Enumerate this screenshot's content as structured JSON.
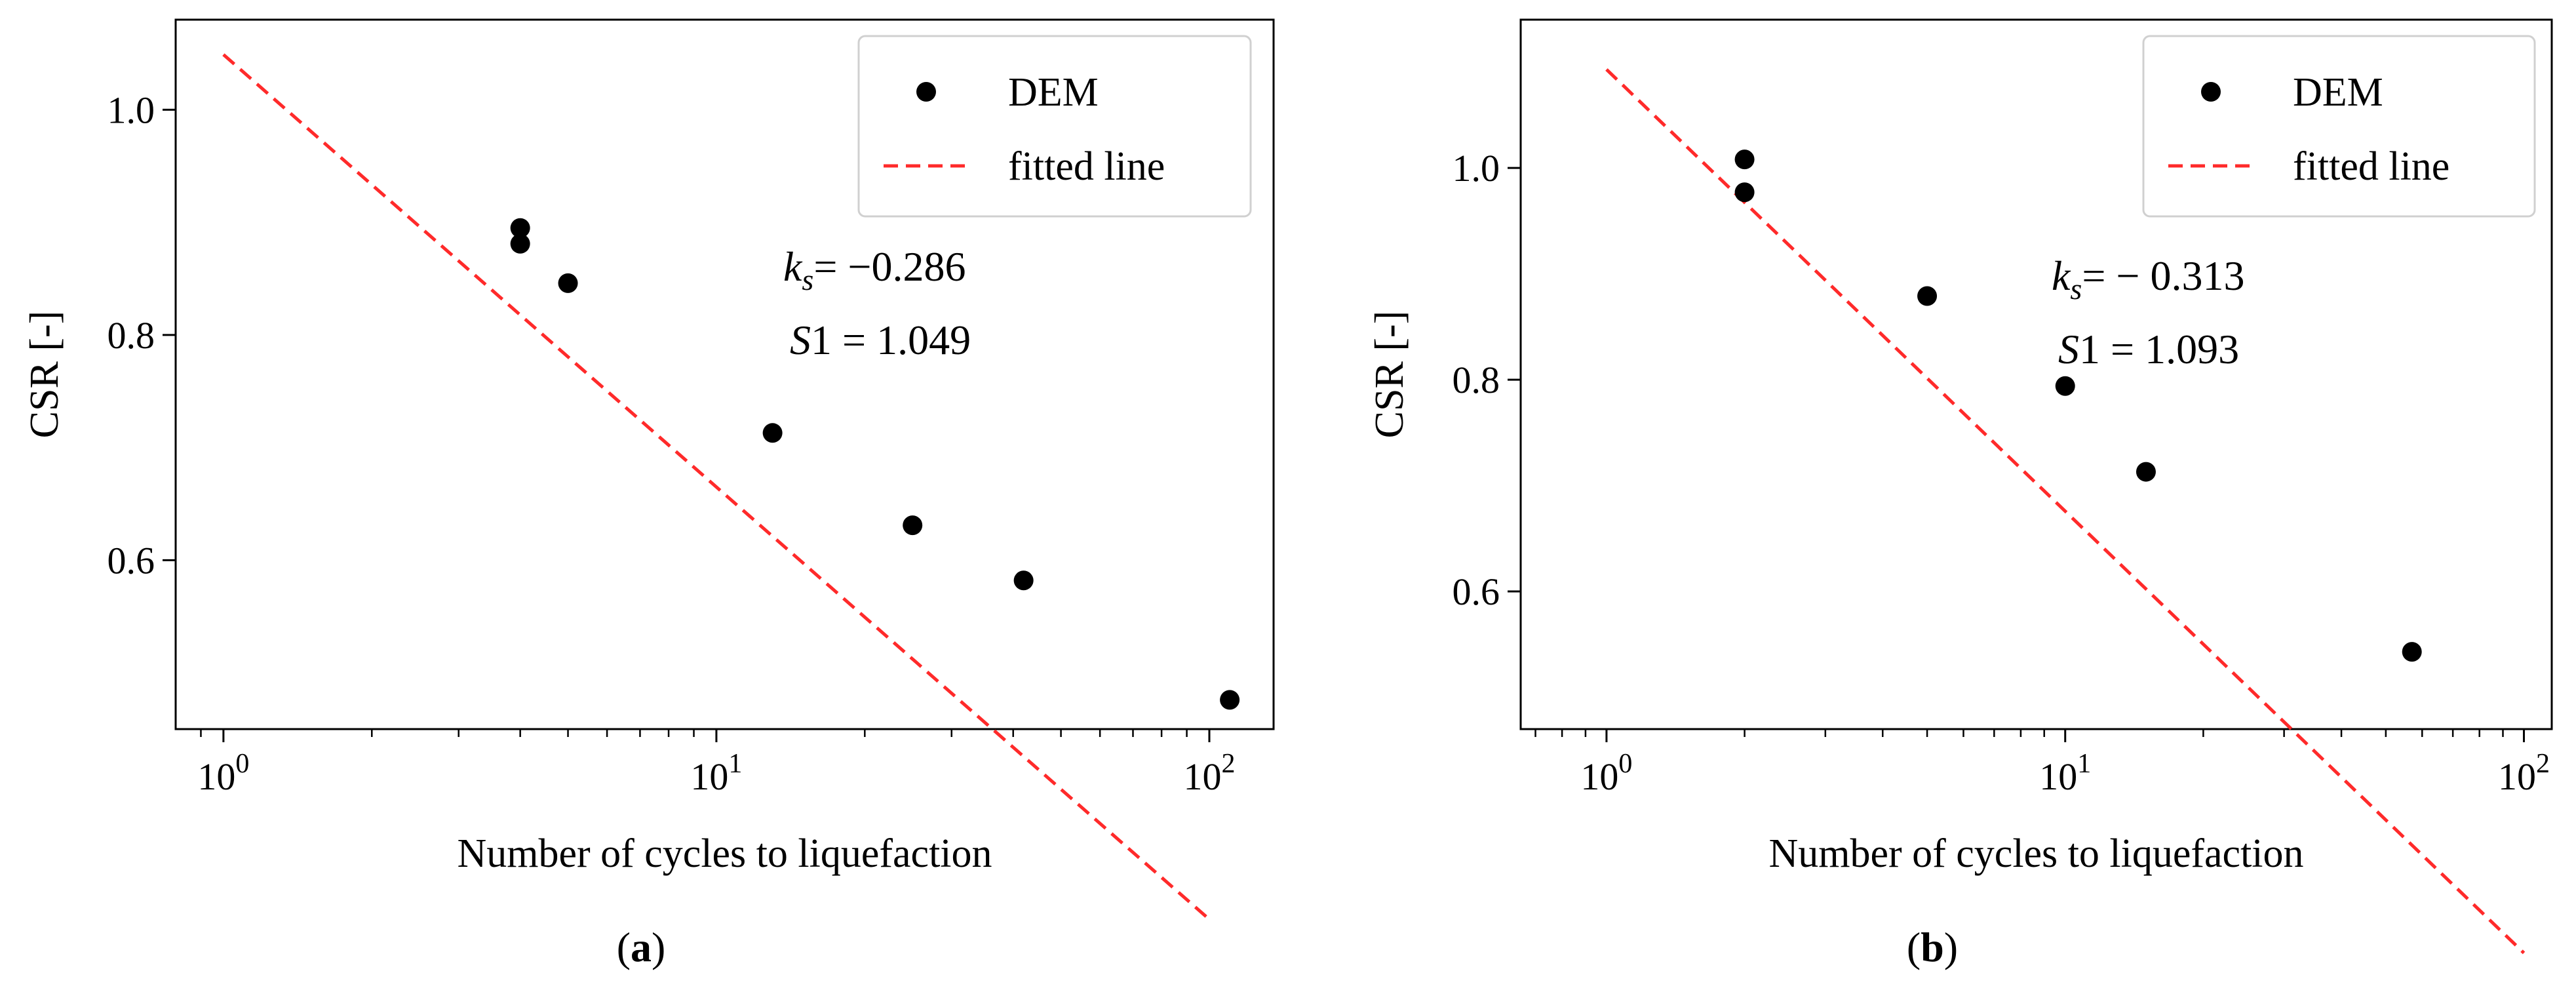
{
  "chart_data": [
    {
      "panel_label": "(a)",
      "type": "scatter",
      "xscale": "log",
      "xlim": [
        0.8,
        135
      ],
      "ylim": [
        0.45,
        1.08
      ],
      "xticks": [
        {
          "value": 1,
          "base": "10",
          "exp": "0"
        },
        {
          "value": 10,
          "base": "10",
          "exp": "1"
        },
        {
          "value": 100,
          "base": "10",
          "exp": "2"
        }
      ],
      "yticks": [
        {
          "value": 0.6,
          "label": "0.6"
        },
        {
          "value": 0.8,
          "label": "0.8"
        },
        {
          "value": 1.0,
          "label": "1.0"
        }
      ],
      "xlabel": "Number of cycles to liquefaction",
      "ylabel": "CSR [-]",
      "series": [
        {
          "name": "DEM",
          "kind": "scatter",
          "color": "#000000",
          "points": [
            [
              4,
              0.895
            ],
            [
              4,
              0.881
            ],
            [
              5,
              0.846
            ],
            [
              13,
              0.713
            ],
            [
              25,
              0.631
            ],
            [
              42,
              0.582
            ],
            [
              110,
              0.476
            ]
          ]
        },
        {
          "name": "fitted line",
          "kind": "line",
          "style": "dashed",
          "color": "#ff2a2a",
          "ks": -0.286,
          "S1": 1.049,
          "x_range": [
            1,
            100
          ]
        }
      ],
      "legend": {
        "position": "top-right",
        "entries": [
          "DEM",
          "fitted line"
        ]
      },
      "annotation": {
        "ks_text": "= −0.286",
        "s1_text": "1 = 1.049"
      }
    },
    {
      "panel_label": "(b)",
      "type": "scatter",
      "xscale": "log",
      "xlim": [
        0.65,
        115
      ],
      "ylim": [
        0.47,
        1.14
      ],
      "xticks": [
        {
          "value": 1,
          "base": "10",
          "exp": "0"
        },
        {
          "value": 10,
          "base": "10",
          "exp": "1"
        },
        {
          "value": 100,
          "base": "10",
          "exp": "2"
        }
      ],
      "yticks": [
        {
          "value": 0.6,
          "label": "0.6"
        },
        {
          "value": 0.8,
          "label": "0.8"
        },
        {
          "value": 1.0,
          "label": "1.0"
        }
      ],
      "xlabel": "Number of cycles to liquefaction",
      "ylabel": "CSR [-]",
      "series": [
        {
          "name": "DEM",
          "kind": "scatter",
          "color": "#000000",
          "points": [
            [
              2,
              1.008
            ],
            [
              2,
              0.977
            ],
            [
              5,
              0.879
            ],
            [
              10,
              0.794
            ],
            [
              15,
              0.713
            ],
            [
              57,
              0.543
            ]
          ]
        },
        {
          "name": "fitted line",
          "kind": "line",
          "style": "dashed",
          "color": "#ff2a2a",
          "ks": -0.313,
          "S1": 1.093,
          "x_range": [
            1,
            100
          ]
        }
      ],
      "legend": {
        "position": "top-right",
        "entries": [
          "DEM",
          "fitted line"
        ]
      },
      "annotation": {
        "ks_text": "= − 0.313",
        "s1_text": "1 = 1.093"
      }
    }
  ]
}
